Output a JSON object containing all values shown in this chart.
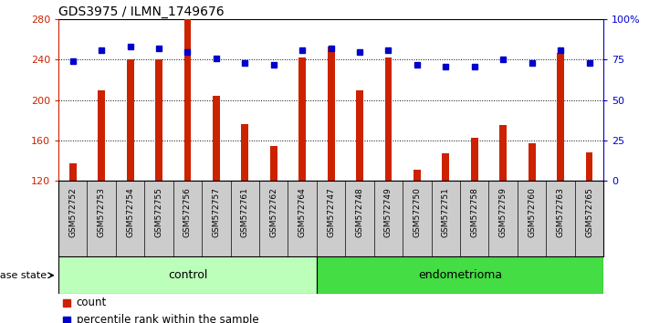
{
  "title": "GDS3975 / ILMN_1749676",
  "samples": [
    "GSM572752",
    "GSM572753",
    "GSM572754",
    "GSM572755",
    "GSM572756",
    "GSM572757",
    "GSM572761",
    "GSM572762",
    "GSM572764",
    "GSM572747",
    "GSM572748",
    "GSM572749",
    "GSM572750",
    "GSM572751",
    "GSM572758",
    "GSM572759",
    "GSM572760",
    "GSM572763",
    "GSM572765"
  ],
  "counts": [
    137,
    210,
    240,
    240,
    280,
    204,
    176,
    155,
    242,
    253,
    210,
    242,
    131,
    147,
    163,
    175,
    157,
    247,
    148
  ],
  "percentiles": [
    74,
    81,
    83,
    82,
    80,
    76,
    73,
    72,
    81,
    82,
    80,
    81,
    72,
    71,
    71,
    75,
    73,
    81,
    73
  ],
  "groups": [
    "control",
    "control",
    "control",
    "control",
    "control",
    "control",
    "control",
    "control",
    "control",
    "endometrioma",
    "endometrioma",
    "endometrioma",
    "endometrioma",
    "endometrioma",
    "endometrioma",
    "endometrioma",
    "endometrioma",
    "endometrioma",
    "endometrioma"
  ],
  "bar_color": "#cc2200",
  "dot_color": "#0000cc",
  "ylim_left": [
    120,
    280
  ],
  "ylim_right": [
    0,
    100
  ],
  "yticks_left": [
    120,
    160,
    200,
    240,
    280
  ],
  "yticks_right": [
    0,
    25,
    50,
    75,
    100
  ],
  "yticklabels_right": [
    "0",
    "25",
    "50",
    "75",
    "100%"
  ],
  "control_color": "#bbffbb",
  "endometrioma_color": "#44dd44",
  "xtick_bg_color": "#cccccc",
  "disease_label": "disease state",
  "legend_count": "count",
  "legend_percentile": "percentile rank within the sample",
  "n_control": 9
}
